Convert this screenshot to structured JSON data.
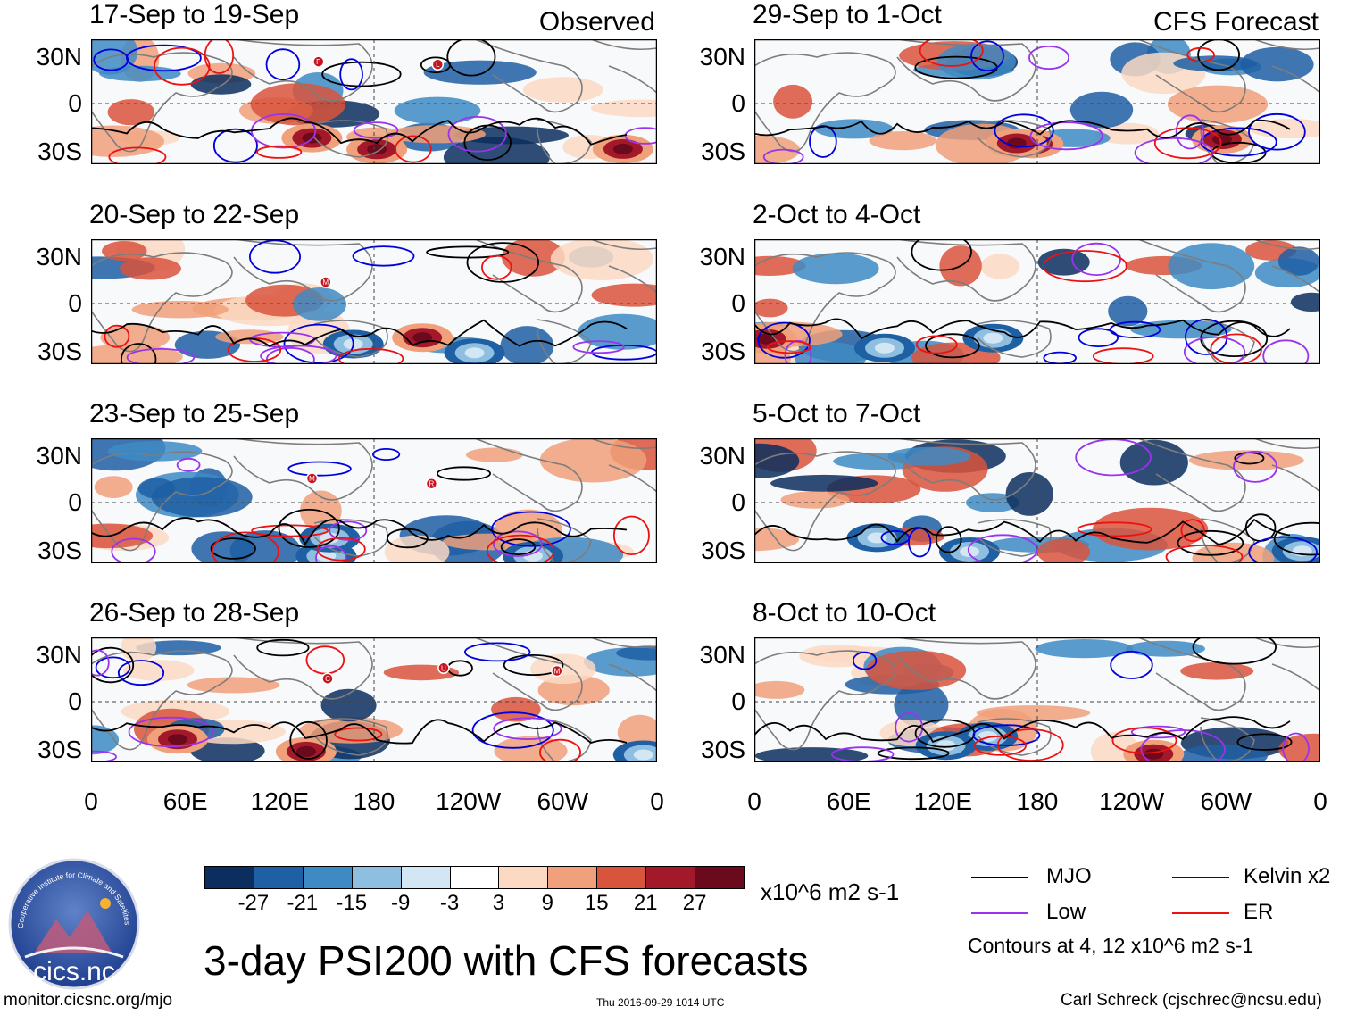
{
  "panels_observed": [
    {
      "date_range": "17-Sep to 19-Sep",
      "label": "Observed"
    },
    {
      "date_range": "20-Sep to 22-Sep",
      "label": ""
    },
    {
      "date_range": "23-Sep to 25-Sep",
      "label": ""
    },
    {
      "date_range": "26-Sep to 28-Sep",
      "label": ""
    }
  ],
  "panels_forecast": [
    {
      "date_range": "29-Sep to 1-Oct",
      "label": "CFS Forecast"
    },
    {
      "date_range": "2-Oct to 4-Oct",
      "label": ""
    },
    {
      "date_range": "5-Oct to 7-Oct",
      "label": ""
    },
    {
      "date_range": "8-Oct to 10-Oct",
      "label": ""
    }
  ],
  "lat_labels": [
    "30N",
    "0",
    "30S"
  ],
  "lon_labels": [
    "0",
    "60E",
    "120E",
    "180",
    "120W",
    "60W",
    "0"
  ],
  "storm_markers_observed": [
    [
      "P",
      "L"
    ],
    [
      "M"
    ],
    [
      "M",
      "R"
    ],
    [
      "C",
      "U",
      "M"
    ]
  ],
  "colorbar": {
    "ticks": [
      "-27",
      "-21",
      "-15",
      "-9",
      "-3",
      "3",
      "9",
      "15",
      "21",
      "27"
    ],
    "units": "x10^6 m2 s-1",
    "colors": [
      "#0b2e5e",
      "#1f5fa3",
      "#3e8bc4",
      "#8fbfe0",
      "#d3e6f3",
      "#ffffff",
      "#fbd9c3",
      "#f0a07a",
      "#d9543c",
      "#a3192a",
      "#6b0a1c"
    ]
  },
  "legend": {
    "mjo": "MJO",
    "kelvin": "Kelvin x2",
    "low": "Low",
    "er": "ER",
    "mjo_color": "#000000",
    "kelvin_color": "#0000dd",
    "low_color": "#9933ee",
    "er_color": "#ee1111",
    "contours_note": "Contours at 4, 12 x10^6 m2 s-1"
  },
  "main_title": "3-day PSI200 with CFS forecasts",
  "logo_text": "cics.nc",
  "logo_ring_text": "Cooperative Institute for Climate and Satellites",
  "footer": {
    "left": "monitor.cicsnc.org/mjo",
    "center": "Thu 2016-09-29 1014 UTC",
    "right": "Carl Schreck (cjschrec@ncsu.edu)"
  }
}
